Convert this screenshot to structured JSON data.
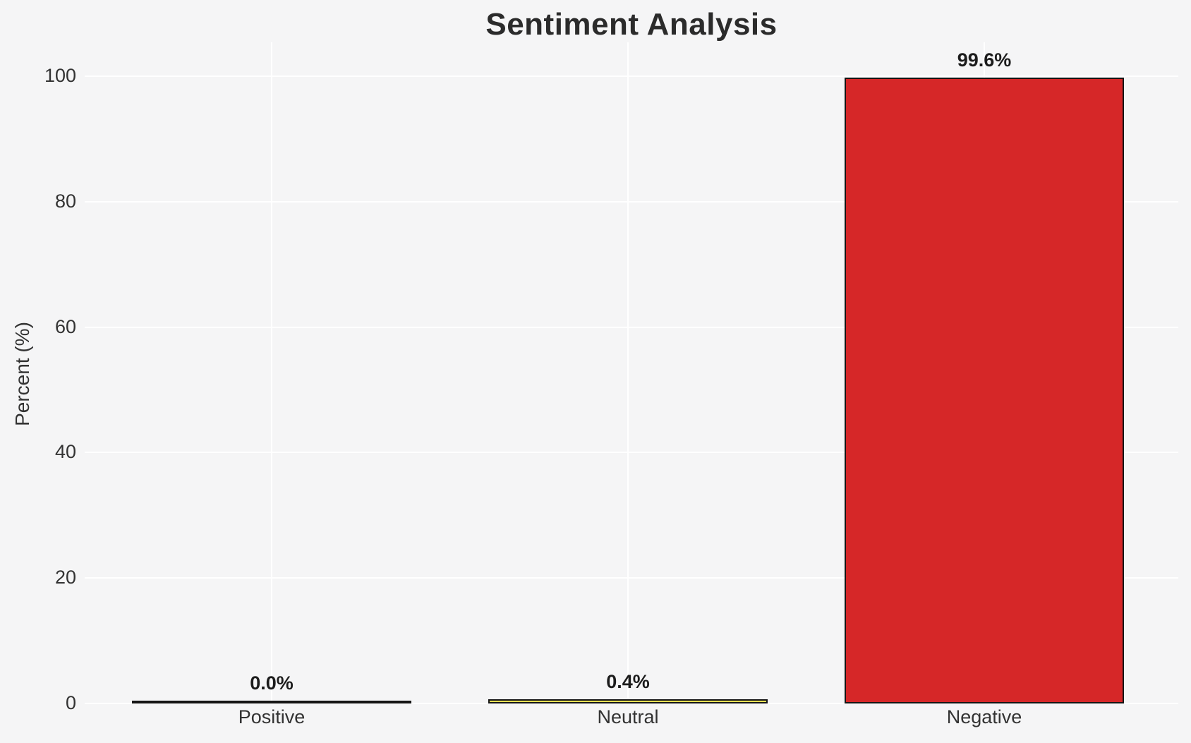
{
  "chart_data": {
    "type": "bar",
    "title": "Sentiment Analysis",
    "xlabel": "",
    "ylabel": "Percent (%)",
    "categories": [
      "Positive",
      "Neutral",
      "Negative"
    ],
    "values": [
      0.0,
      0.4,
      99.6
    ],
    "value_labels": [
      "0.0%",
      "0.4%",
      "99.6%"
    ],
    "yticks": [
      0,
      20,
      40,
      60,
      80,
      100
    ],
    "ylim": [
      0,
      105
    ],
    "grid": true,
    "legend": "none",
    "colors": {
      "background": "#f5f5f6",
      "gridline": "#ffffff",
      "bar_fills": [
        "#f5f5f6",
        "#e8e052",
        "#d62728"
      ],
      "bar_edge": "#151515",
      "title_text": "#2b2b2b",
      "tick_text": "#333333",
      "value_label_text": "#1c1c1c"
    }
  }
}
